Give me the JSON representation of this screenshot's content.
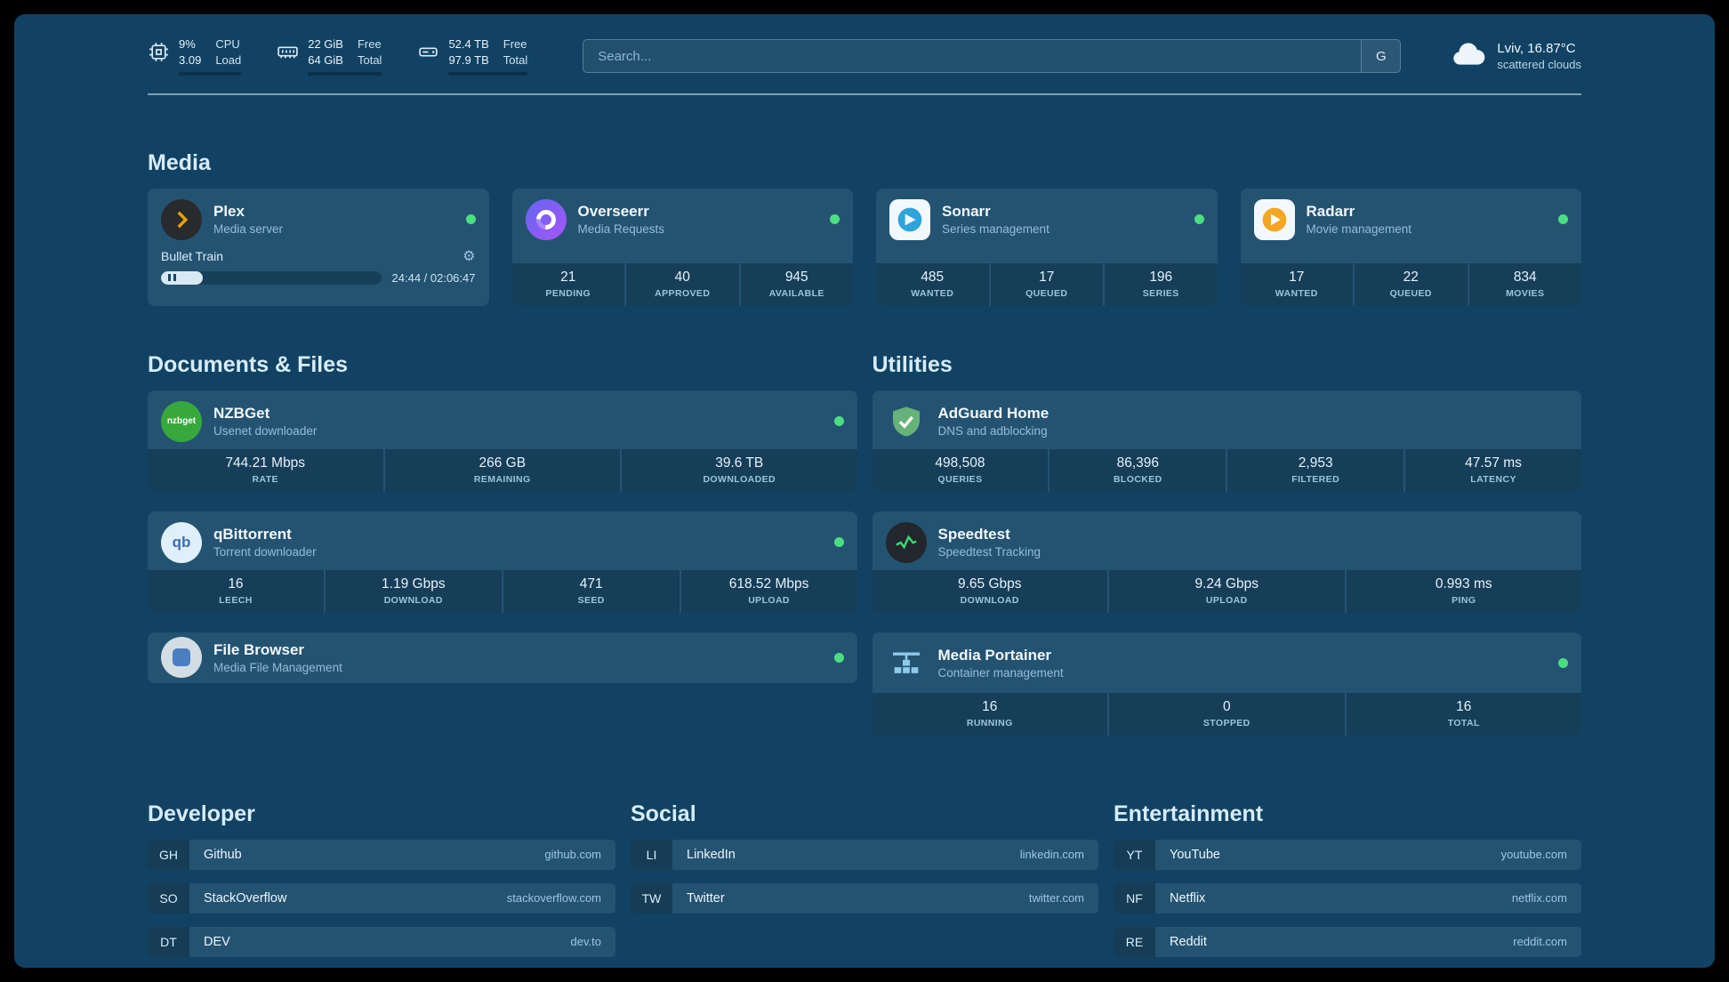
{
  "topbar": {
    "resources": [
      {
        "icon": "cpu-icon",
        "top_value": "9%",
        "bottom_value": "3.09",
        "top_label": "CPU",
        "bottom_label": "Load",
        "percent": 9
      },
      {
        "icon": "memory-icon",
        "top_value": "22 GiB",
        "bottom_value": "64 GiB",
        "top_label": "Free",
        "bottom_label": "Total",
        "percent": 66
      },
      {
        "icon": "disk-icon",
        "top_value": "52.4 TB",
        "bottom_value": "97.9 TB",
        "top_label": "Free",
        "bottom_label": "Total",
        "percent": 46
      }
    ],
    "search": {
      "placeholder": "Search...",
      "button_label": "G"
    },
    "weather": {
      "location": "Lviv, 16.87°C",
      "condition": "scattered clouds"
    }
  },
  "media": {
    "title": "Media",
    "plex": {
      "name": "Plex",
      "subtitle": "Media server",
      "now_playing": "Bullet Train",
      "time": "24:44 / 02:06:47",
      "progress_percent": 19
    },
    "overseerr": {
      "name": "Overseerr",
      "subtitle": "Media Requests",
      "stats": [
        {
          "value": "21",
          "label": "PENDING"
        },
        {
          "value": "40",
          "label": "APPROVED"
        },
        {
          "value": "945",
          "label": "AVAILABLE"
        }
      ]
    },
    "sonarr": {
      "name": "Sonarr",
      "subtitle": "Series management",
      "stats": [
        {
          "value": "485",
          "label": "WANTED"
        },
        {
          "value": "17",
          "label": "QUEUED"
        },
        {
          "value": "196",
          "label": "SERIES"
        }
      ]
    },
    "radarr": {
      "name": "Radarr",
      "subtitle": "Movie management",
      "stats": [
        {
          "value": "17",
          "label": "WANTED"
        },
        {
          "value": "22",
          "label": "QUEUED"
        },
        {
          "value": "834",
          "label": "MOVIES"
        }
      ]
    }
  },
  "documents": {
    "title": "Documents & Files",
    "nzbget": {
      "name": "NZBGet",
      "subtitle": "Usenet downloader",
      "stats": [
        {
          "value": "744.21 Mbps",
          "label": "RATE"
        },
        {
          "value": "266 GB",
          "label": "REMAINING"
        },
        {
          "value": "39.6 TB",
          "label": "DOWNLOADED"
        }
      ]
    },
    "qbittorrent": {
      "name": "qBittorrent",
      "subtitle": "Torrent downloader",
      "stats": [
        {
          "value": "16",
          "label": "LEECH"
        },
        {
          "value": "1.19 Gbps",
          "label": "DOWNLOAD"
        },
        {
          "value": "471",
          "label": "SEED"
        },
        {
          "value": "618.52 Mbps",
          "label": "UPLOAD"
        }
      ]
    },
    "filebrowser": {
      "name": "File Browser",
      "subtitle": "Media File Management"
    }
  },
  "utilities": {
    "title": "Utilities",
    "adguard": {
      "name": "AdGuard Home",
      "subtitle": "DNS and adblocking",
      "stats": [
        {
          "value": "498,508",
          "label": "QUERIES"
        },
        {
          "value": "86,396",
          "label": "BLOCKED"
        },
        {
          "value": "2,953",
          "label": "FILTERED"
        },
        {
          "value": "47.57 ms",
          "label": "LATENCY"
        }
      ]
    },
    "speedtest": {
      "name": "Speedtest",
      "subtitle": "Speedtest Tracking",
      "stats": [
        {
          "value": "9.65 Gbps",
          "label": "DOWNLOAD"
        },
        {
          "value": "9.24 Gbps",
          "label": "UPLOAD"
        },
        {
          "value": "0.993 ms",
          "label": "PING"
        }
      ]
    },
    "portainer": {
      "name": "Media Portainer",
      "subtitle": "Container management",
      "stats": [
        {
          "value": "16",
          "label": "RUNNING"
        },
        {
          "value": "0",
          "label": "STOPPED"
        },
        {
          "value": "16",
          "label": "TOTAL"
        }
      ]
    }
  },
  "bookmarks": {
    "groups": [
      {
        "title": "Developer",
        "items": [
          {
            "abbr": "GH",
            "name": "Github",
            "domain": "github.com"
          },
          {
            "abbr": "SO",
            "name": "StackOverflow",
            "domain": "stackoverflow.com"
          },
          {
            "abbr": "DT",
            "name": "DEV",
            "domain": "dev.to"
          }
        ]
      },
      {
        "title": "Social",
        "items": [
          {
            "abbr": "LI",
            "name": "LinkedIn",
            "domain": "linkedin.com"
          },
          {
            "abbr": "TW",
            "name": "Twitter",
            "domain": "twitter.com"
          }
        ]
      },
      {
        "title": "Entertainment",
        "items": [
          {
            "abbr": "YT",
            "name": "YouTube",
            "domain": "youtube.com"
          },
          {
            "abbr": "NF",
            "name": "Netflix",
            "domain": "netflix.com"
          },
          {
            "abbr": "RE",
            "name": "Reddit",
            "domain": "reddit.com"
          }
        ]
      }
    ]
  },
  "colors": {
    "background": "#114263",
    "status_green": "#4ade80",
    "accent_text": "#d6ecf9"
  }
}
